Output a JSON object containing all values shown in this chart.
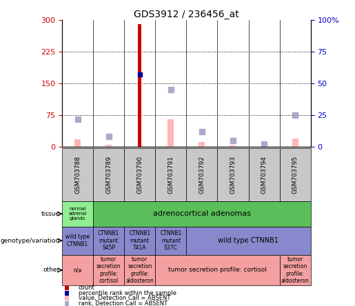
{
  "title": "GDS3912 / 236456_at",
  "samples": [
    "GSM703788",
    "GSM703789",
    "GSM703790",
    "GSM703791",
    "GSM703792",
    "GSM703793",
    "GSM703794",
    "GSM703795"
  ],
  "count_values": [
    0,
    0,
    290,
    0,
    0,
    0,
    0,
    0
  ],
  "percentile_rank_values": [
    0,
    0,
    57,
    0,
    0,
    0,
    0,
    0
  ],
  "absent_value_bars": [
    18,
    5,
    0,
    65,
    12,
    4,
    0,
    20
  ],
  "absent_rank_squares": [
    22,
    8,
    0,
    45,
    12,
    5,
    2,
    25
  ],
  "ylim_left": [
    0,
    300
  ],
  "ylim_right": [
    0,
    100
  ],
  "yticks_left": [
    0,
    75,
    150,
    225,
    300
  ],
  "ytick_labels_left": [
    "0",
    "75",
    "150",
    "225",
    "300"
  ],
  "yticks_right": [
    0,
    25,
    50,
    75,
    100
  ],
  "ytick_labels_right": [
    "0",
    "25",
    "50",
    "75",
    "100%"
  ],
  "tissue_col1_text": "normal\nadrenal\nglands",
  "tissue_col2_text": "adrenocortical adenomas",
  "tissue_col1_color": "#90EE90",
  "tissue_col2_color": "#5ABF5A",
  "geno_color": "#8888CC",
  "geno_splits": [
    [
      0,
      0,
      "wild type\nCTNNB1"
    ],
    [
      1,
      1,
      "CTNNB1\nmutant\nS45P"
    ],
    [
      2,
      2,
      "CTNNB1\nmutant\nT41A"
    ],
    [
      3,
      3,
      "CTNNB1\nmutant\nS37C"
    ],
    [
      4,
      7,
      "wild type CTNNB1"
    ]
  ],
  "other_color": "#F4A0A0",
  "other_splits": [
    [
      0,
      0,
      "n/a"
    ],
    [
      1,
      1,
      "tumor\nsecretion\nprofile:\ncortisol"
    ],
    [
      2,
      2,
      "tumor\nsecretion\nprofile:\naldosteron"
    ],
    [
      3,
      6,
      "tumor secretion profile: cortisol"
    ],
    [
      7,
      7,
      "tumor\nsecretion\nprofile:\naldosteron"
    ]
  ],
  "bar_color_count": "#CC0000",
  "bar_color_percentile": "#000099",
  "bar_color_absent_value": "#FFB6B6",
  "bar_color_absent_rank": "#AAAACC",
  "axis_color_left": "#CC0000",
  "axis_color_right": "#0000CC",
  "sample_box_color": "#C8C8C8",
  "legend_colors": [
    "#CC0000",
    "#000099",
    "#FFB6B6",
    "#AAAACC"
  ],
  "legend_labels": [
    "count",
    "percentile rank within the sample",
    "value, Detection Call = ABSENT",
    "rank, Detection Call = ABSENT"
  ]
}
